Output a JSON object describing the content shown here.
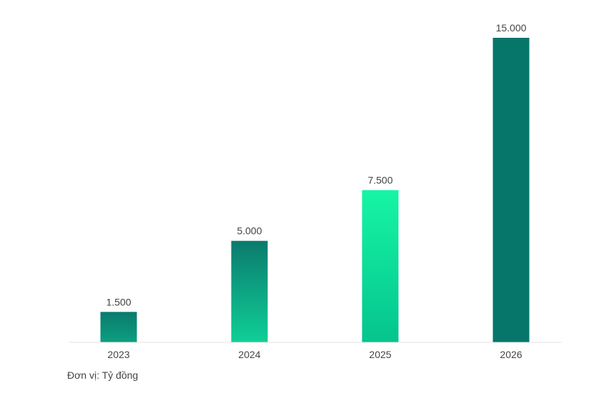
{
  "note": "Đơn vị: Tỷ đồng",
  "colors": {
    "axis": "#e3e3e3",
    "text": "#444444",
    "gradients": [
      [
        "#0b7a6e",
        "#0d9f80"
      ],
      [
        "#0b7a6e",
        "#0fcf96"
      ],
      [
        "#16f5a5",
        "#05c48d"
      ],
      [
        "#06766b",
        "#06766b"
      ]
    ]
  },
  "chart_data": {
    "type": "bar",
    "categories": [
      "2023",
      "2024",
      "2025",
      "2026"
    ],
    "values": [
      1500,
      5000,
      7500,
      15000
    ],
    "value_labels": [
      "1.500",
      "5.000",
      "7.500",
      "15.000"
    ],
    "title": "",
    "xlabel": "",
    "ylabel": "",
    "ylim": [
      0,
      15000
    ],
    "grid": false,
    "legend": "none"
  }
}
